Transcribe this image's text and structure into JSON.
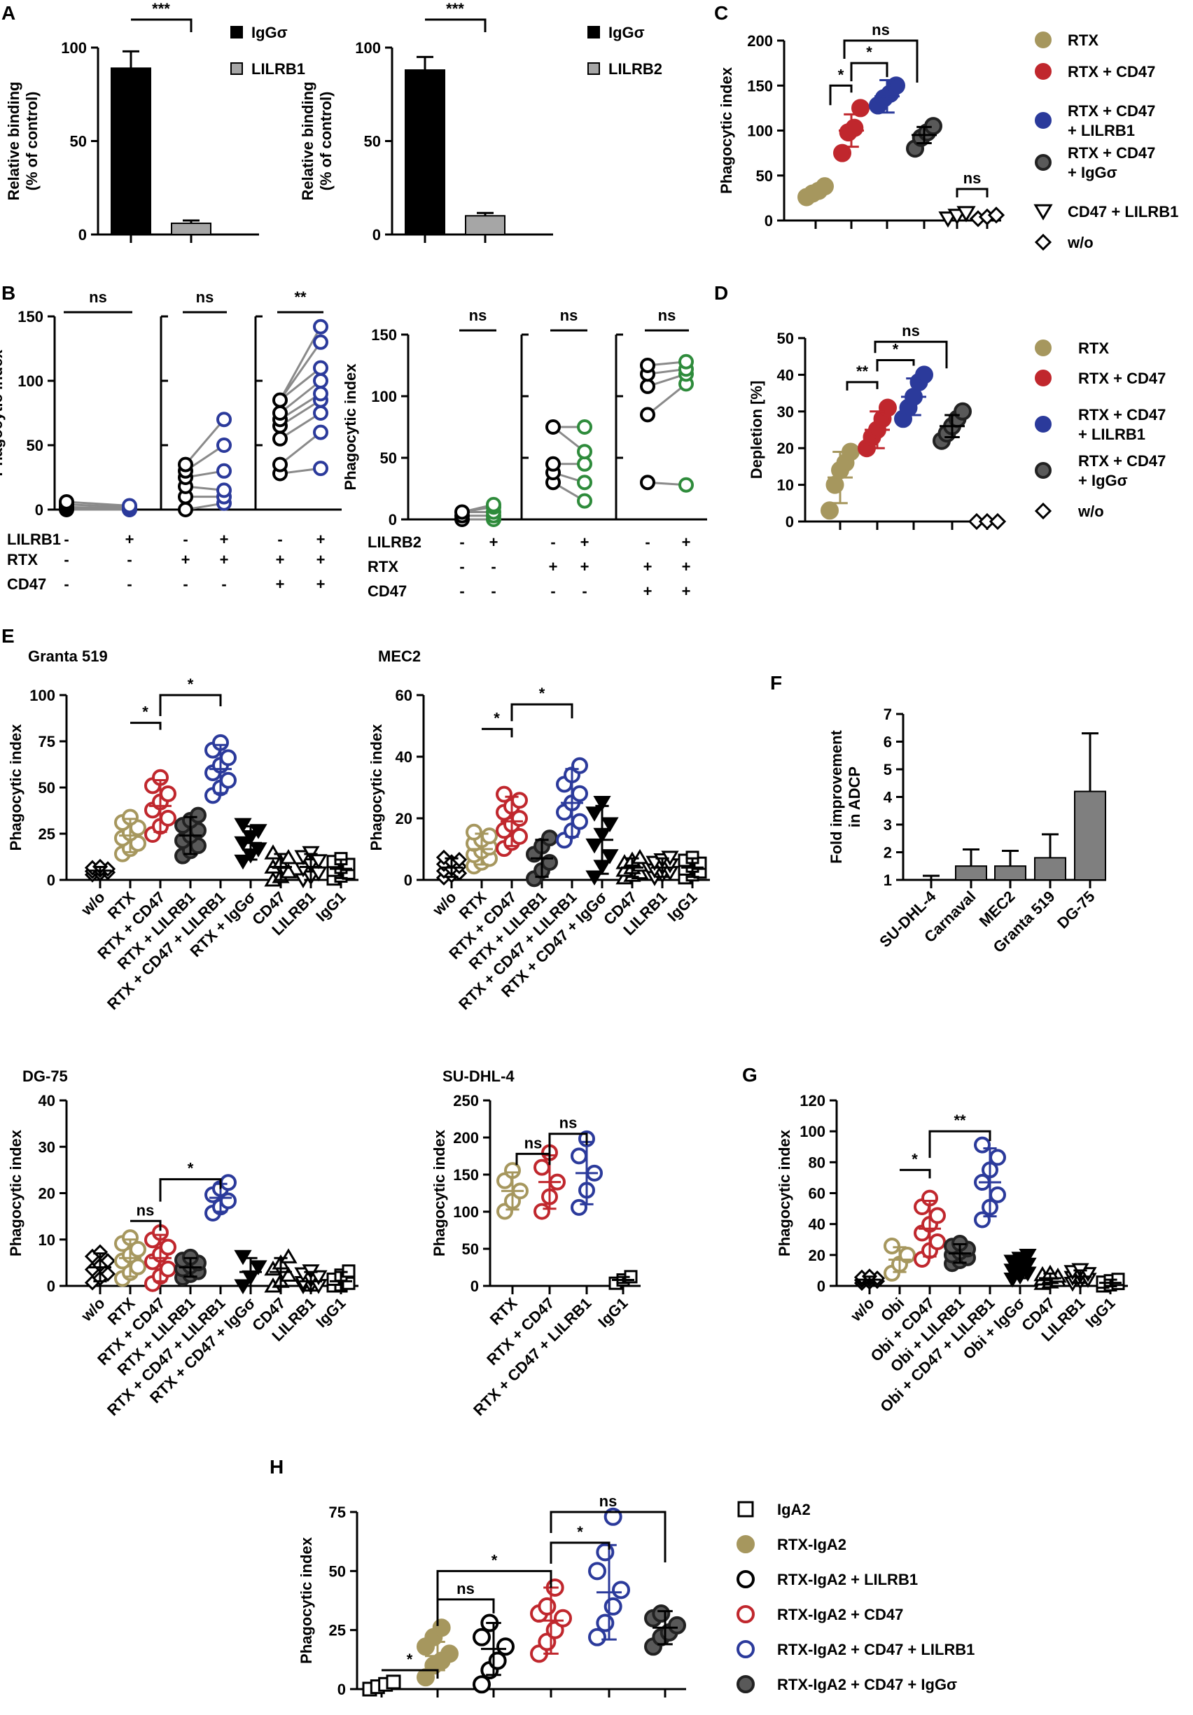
{
  "colors": {
    "gold": "#a6975e",
    "red": "#c0272d",
    "blue": "#2b3a9b",
    "gray": "#595959",
    "green": "#2e8b3b",
    "black": "#000000",
    "gray_bar": "#7f7f7f",
    "light_bar": "#a6a6a6"
  },
  "chart_data": [
    {
      "id": "A1",
      "panel": "A",
      "type": "bar",
      "ylabel": "Relative binding\n(% of control)",
      "ylim": [
        0,
        100
      ],
      "yticks": [
        0,
        50,
        100
      ],
      "categories": [
        "IgGσ",
        "LILRB1"
      ],
      "values": [
        89,
        6
      ],
      "errors": [
        9,
        1.5
      ],
      "legend": [
        "IgGσ",
        "LILRB1"
      ],
      "significance": [
        "***"
      ]
    },
    {
      "id": "A2",
      "type": "bar",
      "ylabel": "Relative binding\n(% of control)",
      "ylim": [
        0,
        100
      ],
      "yticks": [
        0,
        50,
        100
      ],
      "categories": [
        "IgGσ",
        "LILRB2"
      ],
      "values": [
        88,
        10
      ],
      "errors": [
        7,
        1.5
      ],
      "legend": [
        "IgGσ",
        "LILRB2"
      ],
      "significance": [
        "***"
      ]
    },
    {
      "id": "C",
      "panel": "C",
      "type": "scatter",
      "ylabel": "Phagocytic index",
      "ylim": [
        0,
        200
      ],
      "yticks": [
        0,
        50,
        100,
        150,
        200
      ],
      "groups": [
        {
          "name": "RTX",
          "values": [
            26,
            30,
            33,
            38
          ],
          "mean": 32
        },
        {
          "name": "RTX + CD47",
          "values": [
            75,
            98,
            103,
            125
          ],
          "mean": 100
        },
        {
          "name": "RTX + CD47 + LILRB1",
          "values": [
            128,
            136,
            141,
            150
          ],
          "mean": 138
        },
        {
          "name": "RTX + CD47 + IgGσ",
          "values": [
            80,
            92,
            98,
            105
          ],
          "mean": 95
        },
        {
          "name": "CD47 + LILRB1",
          "values": [
            2,
            5,
            8
          ],
          "mean": 5
        },
        {
          "name": "w/o",
          "values": [
            2,
            4,
            6
          ],
          "mean": 4
        }
      ],
      "significance": [
        "*",
        "*",
        "ns",
        "ns"
      ],
      "legend": [
        "RTX",
        "RTX + CD47",
        "RTX + CD47 + LILRB1",
        "RTX + CD47 + IgGσ",
        "CD47 + LILRB1",
        "w/o"
      ]
    },
    {
      "id": "B1",
      "panel": "B",
      "type": "paired",
      "ylabel": "Phagocytic index",
      "ylim": [
        0,
        150
      ],
      "yticks": [
        0,
        50,
        100,
        150
      ],
      "row_labels": [
        "LILRB1",
        "RTX",
        "CD47"
      ],
      "pairs": [
        {
          "pre": [
            0,
            1,
            2,
            4,
            6
          ],
          "post": [
            0,
            0,
            1,
            2,
            3
          ],
          "sig": "ns",
          "cols": [
            [
              "-",
              "+"
            ],
            [
              "-",
              "-"
            ],
            [
              "-",
              "-"
            ]
          ]
        },
        {
          "pre": [
            0,
            10,
            18,
            25,
            30,
            35
          ],
          "post": [
            5,
            10,
            15,
            30,
            50,
            70
          ],
          "sig": "ns",
          "cols": [
            [
              "-",
              "+"
            ],
            [
              "+",
              "+"
            ],
            [
              "-",
              "-"
            ]
          ]
        },
        {
          "pre": [
            28,
            35,
            55,
            65,
            70,
            75,
            85
          ],
          "post": [
            32,
            60,
            75,
            85,
            90,
            100,
            110,
            130,
            142
          ],
          "sig": "**",
          "cols": [
            [
              "-",
              "+"
            ],
            [
              "+",
              "+"
            ],
            [
              "+",
              "+"
            ]
          ]
        }
      ]
    },
    {
      "id": "B2",
      "type": "paired",
      "ylabel": "Phagocytic index",
      "ylim": [
        0,
        150
      ],
      "yticks": [
        0,
        50,
        100,
        150
      ],
      "row_labels": [
        "LILRB2",
        "RTX",
        "CD47"
      ],
      "pairs": [
        {
          "pre": [
            0,
            3,
            6
          ],
          "post": [
            0,
            3,
            6,
            10,
            12
          ],
          "sig": "ns",
          "cols": [
            [
              "-",
              "+"
            ],
            [
              "-",
              "-"
            ],
            [
              "-",
              "-"
            ]
          ]
        },
        {
          "pre": [
            30,
            38,
            45,
            75
          ],
          "post": [
            15,
            30,
            45,
            55,
            75
          ],
          "sig": "ns",
          "cols": [
            [
              "-",
              "+"
            ],
            [
              "+",
              "+"
            ],
            [
              "-",
              "-"
            ]
          ]
        },
        {
          "pre": [
            30,
            85,
            108,
            118,
            125
          ],
          "post": [
            28,
            110,
            118,
            122,
            128
          ],
          "sig": "ns",
          "cols": [
            [
              "-",
              "+"
            ],
            [
              "+",
              "+"
            ],
            [
              "+",
              "+"
            ]
          ]
        }
      ]
    },
    {
      "id": "D",
      "panel": "D",
      "type": "scatter",
      "ylabel": "Depletion [%]",
      "ylim": [
        0,
        50
      ],
      "yticks": [
        0,
        10,
        20,
        30,
        40,
        50
      ],
      "groups": [
        {
          "name": "RTX",
          "values": [
            3,
            10,
            14,
            16,
            19
          ],
          "mean": 12
        },
        {
          "name": "RTX + CD47",
          "values": [
            20,
            23,
            25,
            28,
            31
          ],
          "mean": 25
        },
        {
          "name": "RTX + CD47 + LILRB1",
          "values": [
            28,
            31,
            34,
            38,
            40
          ],
          "mean": 34
        },
        {
          "name": "RTX + CD47 + IgGσ",
          "values": [
            22,
            24,
            26,
            28,
            30
          ],
          "mean": 26
        },
        {
          "name": "w/o",
          "values": [
            0,
            0,
            0
          ],
          "mean": 0
        }
      ],
      "significance": [
        "**",
        "*",
        "ns"
      ],
      "legend": [
        "RTX",
        "RTX + CD47",
        "RTX + CD47 + LILRB1",
        "RTX + CD47 + IgGσ",
        "w/o"
      ]
    },
    {
      "id": "E1",
      "panel": "E",
      "title": "Granta 519",
      "type": "scatter",
      "ylabel": "Phagocytic index",
      "ylim": [
        0,
        100
      ],
      "yticks": [
        0,
        25,
        50,
        75,
        100
      ],
      "categories": [
        "w/o",
        "RTX",
        "RTX + CD47",
        "RTX + LILRB1",
        "RTX + CD47 + LILRB1",
        "RTX + IgGσ",
        "CD47",
        "LILRB1",
        "IgG1"
      ],
      "means": [
        5,
        24,
        40,
        24,
        60,
        20,
        7,
        7,
        6
      ],
      "significance": [
        "*",
        "*"
      ]
    },
    {
      "id": "E2",
      "title": "MEC2",
      "type": "scatter",
      "ylabel": "Phagocytic index",
      "ylim": [
        0,
        60
      ],
      "yticks": [
        0,
        20,
        40,
        60
      ],
      "categories": [
        "w/o",
        "RTX",
        "RTX + CD47",
        "RTX + LILRB1",
        "RTX + CD47 + LILRB1",
        "RTX + CD47 + IgGσ",
        "CD47",
        "LILRB1",
        "IgG1"
      ],
      "means": [
        4,
        10,
        19,
        7,
        25,
        13,
        4,
        4,
        4
      ],
      "significance": [
        "*",
        "*"
      ]
    },
    {
      "id": "F",
      "panel": "F",
      "type": "bar",
      "ylabel": "Fold improvement\nin ADCP",
      "ylim": [
        1,
        7
      ],
      "yticks": [
        1,
        2,
        3,
        4,
        5,
        6,
        7
      ],
      "categories": [
        "SU-DHL-4",
        "Carnaval",
        "MEC2",
        "Granta 519",
        "DG-75"
      ],
      "values": [
        1.0,
        1.5,
        1.5,
        1.8,
        4.2
      ],
      "errors": [
        0.15,
        0.6,
        0.55,
        0.85,
        2.1
      ]
    },
    {
      "id": "E3",
      "title": "DG-75",
      "type": "scatter",
      "ylabel": "Phagocytic index",
      "ylim": [
        0,
        40
      ],
      "yticks": [
        0,
        10,
        20,
        30,
        40
      ],
      "categories": [
        "w/o",
        "RTX",
        "RTX + CD47",
        "RTX + LILRB1",
        "RTX + CD47 + LILRB1",
        "RTX + CD47 + IgGσ",
        "CD47",
        "LILRB1",
        "IgG1"
      ],
      "means": [
        4,
        6,
        6,
        4,
        19,
        3,
        3,
        1,
        1
      ],
      "significance": [
        "ns",
        "*"
      ]
    },
    {
      "id": "E4",
      "title": "SU-DHL-4",
      "type": "scatter",
      "ylabel": "Phagocytic index",
      "ylim": [
        0,
        250
      ],
      "yticks": [
        0,
        50,
        100,
        150,
        200,
        250
      ],
      "categories": [
        "RTX",
        "RTX + CD47",
        "RTX + CD47 + LILRB1",
        "IgG1"
      ],
      "means": [
        128,
        140,
        152,
        8
      ],
      "significance": [
        "ns",
        "ns"
      ]
    },
    {
      "id": "G",
      "panel": "G",
      "type": "scatter",
      "ylabel": "Phagocytic index",
      "ylim": [
        0,
        120
      ],
      "yticks": [
        0,
        20,
        40,
        60,
        80,
        100,
        120
      ],
      "categories": [
        "w/o",
        "Obi",
        "Obi + CD47",
        "Obi + LILRB1",
        "Obi + CD47 + LILRB1",
        "Obi + IgGσ",
        "CD47",
        "LILRB1",
        "IgG1"
      ],
      "means": [
        4,
        17,
        37,
        21,
        67,
        12,
        5,
        6,
        2
      ],
      "significance": [
        "*",
        "**"
      ]
    },
    {
      "id": "H",
      "panel": "H",
      "type": "scatter",
      "ylabel": "Phagocytic index",
      "ylim": [
        0,
        75
      ],
      "yticks": [
        0,
        25,
        50,
        75
      ],
      "groups": [
        {
          "name": "IgA2",
          "values": [
            0,
            1,
            2,
            3
          ],
          "mean": 1
        },
        {
          "name": "RTX-IgA2",
          "values": [
            5,
            10,
            12,
            15,
            18,
            22,
            26
          ],
          "mean": 14
        },
        {
          "name": "RTX-IgA2 + LILRB1",
          "values": [
            2,
            8,
            12,
            18,
            22,
            28
          ],
          "mean": 17
        },
        {
          "name": "RTX-IgA2 + CD47",
          "values": [
            15,
            20,
            25,
            30,
            32,
            35,
            43
          ],
          "mean": 29
        },
        {
          "name": "RTX-IgA2 + CD47 + LILRB1",
          "values": [
            22,
            28,
            35,
            42,
            50,
            58,
            73
          ],
          "mean": 41
        },
        {
          "name": "RTX-IgA2 + CD47 + IgGσ",
          "values": [
            18,
            22,
            24,
            27,
            30,
            32
          ],
          "mean": 26
        }
      ],
      "significance": [
        "*",
        "ns",
        "*",
        "*",
        "ns"
      ],
      "legend": [
        "IgA2",
        "RTX-IgA2",
        "RTX-IgA2 + LILRB1",
        "RTX-IgA2 + CD47",
        "RTX-IgA2 + CD47 + LILRB1",
        "RTX-IgA2 + CD47 + IgGσ"
      ]
    }
  ]
}
